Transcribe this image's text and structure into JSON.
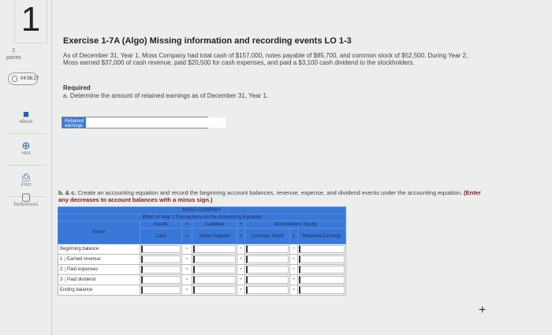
{
  "question": {
    "number": "1",
    "points_value": "2",
    "points_label": "points",
    "timer": "04:56:27"
  },
  "tools": [
    {
      "label": "eBook",
      "icon": "book-icon"
    },
    {
      "label": "Hint",
      "icon": "lifebuoy-icon"
    },
    {
      "label": "Print",
      "icon": "printer-icon"
    },
    {
      "label": "References",
      "icon": "document-copy-icon"
    }
  ],
  "title": "Exercise 1-7A (Algo) Missing information and recording events LO 1-3",
  "intro": "As of December 31, Year 1, Moss Company had total cash of $157,000, notes payable of $85,700, and common stock of $52,500. During Year 2, Moss earned $37,000 of cash revenue, paid $20,500 for cash expenses, and paid a $3,100 cash dividend to the stockholders.",
  "required": "Required",
  "part_a": "a. Determine the amount of retained earnings as of December 31, Year 1.",
  "retained_label": "Retained earnings",
  "part_bc_lead": "b. & c.",
  "part_bc": " Create an accounting equation and record the beginning account balances, revenue, expense, and dividend events under the accounting equation. ",
  "part_bc_note": "(Enter any decreases to account balances with a minus sign.)",
  "table": {
    "company": "MOSS COMPANY",
    "subtitle": "Effect of Year 2 Transactions on the Accounting Equation",
    "event": "Event",
    "assets": "Assets",
    "eq": "=",
    "liabilities": "Liabilities",
    "plus": "+",
    "equity": "Stockholders' Equity",
    "cash": "Cash",
    "notes": "Notes Payable",
    "common": "Common Stock",
    "retained": "Retained Earnings",
    "rows": [
      {
        "num": "",
        "label": "Beginning balance"
      },
      {
        "num": "1",
        "label": "Earned revenue"
      },
      {
        "num": "2",
        "label": "Paid expenses"
      },
      {
        "num": "3",
        "label": "Paid dividend"
      },
      {
        "num": "",
        "label": "Ending balance"
      }
    ]
  },
  "colors": {
    "accent": "#3a78d8",
    "note": "#7a1f1f"
  }
}
